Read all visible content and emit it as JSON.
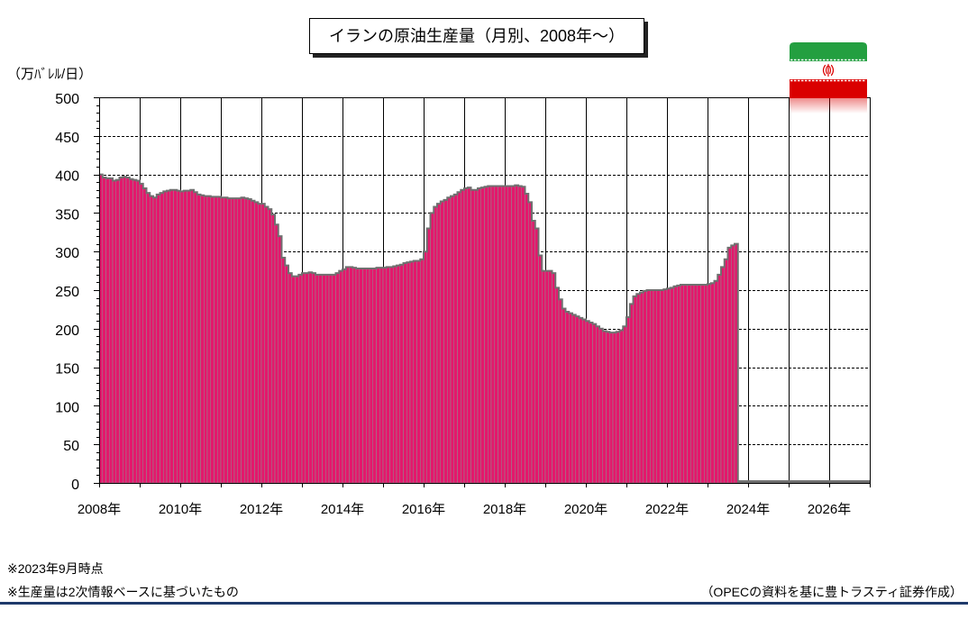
{
  "notes": [
    "※2023年9月時点",
    "※生産量は2次情報ベースに基づいたもの"
  ],
  "source": "（OPECの資料を基に豊トラスティ証券作成）",
  "flag": {
    "icon": "iran-flag-icon",
    "colors": {
      "green": "#239F40",
      "white": "#FFFFFF",
      "red": "#DA0000"
    }
  },
  "colors": {
    "bar": "#E3186C",
    "bar_outline": "#8E8E8E",
    "bar_top_line": "#707070",
    "grid": "#000000",
    "rule": "#1F3A6B"
  },
  "chart_data": {
    "type": "bar",
    "title": "イランの原油生産量（月別、2008年～）",
    "ylabel": "（万ﾊﾞﾚﾙ/日）",
    "xlabel": "",
    "ylim": [
      0,
      500
    ],
    "xlim": [
      "2008-01",
      "2026-12"
    ],
    "grid": {
      "horizontal": true,
      "vertical": true
    },
    "y_tick_labels": [
      "0",
      "50",
      "100",
      "150",
      "200",
      "250",
      "300",
      "350",
      "400",
      "450",
      "500"
    ],
    "x_tick_labels": [
      "2008年",
      "2010年",
      "2012年",
      "2014年",
      "2016年",
      "2018年",
      "2020年",
      "2022年",
      "2024年",
      "2026年"
    ],
    "x": [
      "2008-01",
      "2008-02",
      "2008-03",
      "2008-04",
      "2008-05",
      "2008-06",
      "2008-07",
      "2008-08",
      "2008-09",
      "2008-10",
      "2008-11",
      "2008-12",
      "2009-01",
      "2009-02",
      "2009-03",
      "2009-04",
      "2009-05",
      "2009-06",
      "2009-07",
      "2009-08",
      "2009-09",
      "2009-10",
      "2009-11",
      "2009-12",
      "2010-01",
      "2010-02",
      "2010-03",
      "2010-04",
      "2010-05",
      "2010-06",
      "2010-07",
      "2010-08",
      "2010-09",
      "2010-10",
      "2010-11",
      "2010-12",
      "2011-01",
      "2011-02",
      "2011-03",
      "2011-04",
      "2011-05",
      "2011-06",
      "2011-07",
      "2011-08",
      "2011-09",
      "2011-10",
      "2011-11",
      "2011-12",
      "2012-01",
      "2012-02",
      "2012-03",
      "2012-04",
      "2012-05",
      "2012-06",
      "2012-07",
      "2012-08",
      "2012-09",
      "2012-10",
      "2012-11",
      "2012-12",
      "2013-01",
      "2013-02",
      "2013-03",
      "2013-04",
      "2013-05",
      "2013-06",
      "2013-07",
      "2013-08",
      "2013-09",
      "2013-10",
      "2013-11",
      "2013-12",
      "2014-01",
      "2014-02",
      "2014-03",
      "2014-04",
      "2014-05",
      "2014-06",
      "2014-07",
      "2014-08",
      "2014-09",
      "2014-10",
      "2014-11",
      "2014-12",
      "2015-01",
      "2015-02",
      "2015-03",
      "2015-04",
      "2015-05",
      "2015-06",
      "2015-07",
      "2015-08",
      "2015-09",
      "2015-10",
      "2015-11",
      "2015-12",
      "2016-01",
      "2016-02",
      "2016-03",
      "2016-04",
      "2016-05",
      "2016-06",
      "2016-07",
      "2016-08",
      "2016-09",
      "2016-10",
      "2016-11",
      "2016-12",
      "2017-01",
      "2017-02",
      "2017-03",
      "2017-04",
      "2017-05",
      "2017-06",
      "2017-07",
      "2017-08",
      "2017-09",
      "2017-10",
      "2017-11",
      "2017-12",
      "2018-01",
      "2018-02",
      "2018-03",
      "2018-04",
      "2018-05",
      "2018-06",
      "2018-07",
      "2018-08",
      "2018-09",
      "2018-10",
      "2018-11",
      "2018-12",
      "2019-01",
      "2019-02",
      "2019-03",
      "2019-04",
      "2019-05",
      "2019-06",
      "2019-07",
      "2019-08",
      "2019-09",
      "2019-10",
      "2019-11",
      "2019-12",
      "2020-01",
      "2020-02",
      "2020-03",
      "2020-04",
      "2020-05",
      "2020-06",
      "2020-07",
      "2020-08",
      "2020-09",
      "2020-10",
      "2020-11",
      "2020-12",
      "2021-01",
      "2021-02",
      "2021-03",
      "2021-04",
      "2021-05",
      "2021-06",
      "2021-07",
      "2021-08",
      "2021-09",
      "2021-10",
      "2021-11",
      "2021-12",
      "2022-01",
      "2022-02",
      "2022-03",
      "2022-04",
      "2022-05",
      "2022-06",
      "2022-07",
      "2022-08",
      "2022-09",
      "2022-10",
      "2022-11",
      "2022-12",
      "2023-01",
      "2023-02",
      "2023-03",
      "2023-04",
      "2023-05",
      "2023-06",
      "2023-07",
      "2023-08",
      "2023-09"
    ],
    "series": [
      {
        "values": [
          400,
          396,
          395,
          395,
          392,
          393,
          396,
          397,
          396,
          394,
          393,
          392,
          388,
          382,
          376,
          372,
          370,
          374,
          376,
          378,
          379,
          380,
          380,
          379,
          378,
          379,
          379,
          380,
          377,
          374,
          373,
          372,
          372,
          371,
          371,
          371,
          370,
          370,
          369,
          369,
          369,
          369,
          370,
          369,
          368,
          366,
          364,
          362,
          362,
          358,
          355,
          348,
          335,
          320,
          292,
          282,
          272,
          268,
          268,
          270,
          272,
          272,
          273,
          272,
          270,
          270,
          270,
          270,
          270,
          270,
          272,
          275,
          277,
          280,
          280,
          279,
          278,
          278,
          278,
          278,
          278,
          278,
          279,
          279,
          279,
          280,
          280,
          281,
          282,
          283,
          285,
          286,
          287,
          288,
          288,
          290,
          300,
          330,
          350,
          358,
          362,
          365,
          367,
          370,
          372,
          374,
          377,
          380,
          382,
          383,
          380,
          380,
          382,
          383,
          384,
          385,
          385,
          385,
          385,
          385,
          385,
          385,
          385,
          386,
          385,
          384,
          375,
          364,
          340,
          330,
          295,
          275,
          275,
          275,
          272,
          253,
          238,
          226,
          222,
          220,
          218,
          216,
          214,
          212,
          210,
          208,
          206,
          203,
          200,
          197,
          196,
          195,
          195,
          196,
          198,
          203,
          215,
          232,
          242,
          245,
          247,
          249,
          250,
          250,
          250,
          250,
          250,
          251,
          252,
          253,
          255,
          256,
          257,
          257,
          257,
          257,
          257,
          257,
          257,
          257,
          258,
          259,
          262,
          270,
          280,
          290,
          305,
          308,
          310
        ]
      }
    ]
  }
}
